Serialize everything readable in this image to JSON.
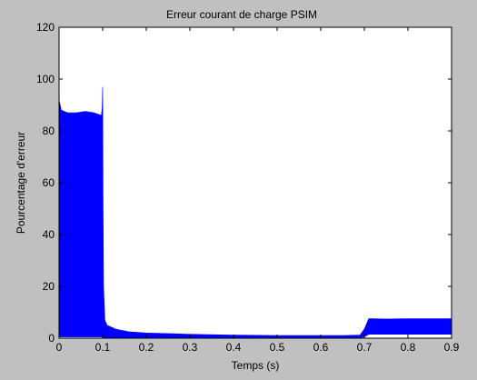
{
  "chart_data": {
    "type": "area",
    "title": "Erreur courant de charge PSIM",
    "xlabel": "Temps (s)",
    "ylabel": "Pourcentage d'erreur",
    "xlim": [
      0,
      0.9
    ],
    "ylim": [
      0,
      120
    ],
    "xticks": [
      "0",
      "0.1",
      "0.2",
      "0.3",
      "0.4",
      "0.5",
      "0.6",
      "0.7",
      "0.8",
      "0.9"
    ],
    "yticks": [
      "0",
      "20",
      "40",
      "60",
      "80",
      "100",
      "120"
    ],
    "grid": false,
    "legend": "none",
    "series_color": "#0000ff",
    "background": "#c0c0c0",
    "plot_background": "#ffffff",
    "envelope": {
      "x": [
        0.0,
        0.005,
        0.02,
        0.04,
        0.06,
        0.08,
        0.097,
        0.099,
        0.1,
        0.101,
        0.102,
        0.105,
        0.11,
        0.13,
        0.16,
        0.2,
        0.25,
        0.3,
        0.4,
        0.5,
        0.6,
        0.65,
        0.69,
        0.7,
        0.71,
        0.72,
        0.75,
        0.8,
        0.85,
        0.9
      ],
      "upper": [
        92.0,
        88.0,
        87.0,
        87.0,
        87.5,
        87.0,
        86.0,
        89.0,
        97.0,
        48.0,
        20.0,
        7.0,
        5.0,
        3.5,
        2.5,
        2.0,
        1.8,
        1.5,
        1.2,
        1.0,
        1.0,
        1.0,
        1.2,
        3.5,
        7.5,
        7.5,
        7.4,
        7.5,
        7.5,
        7.5
      ],
      "lower": [
        0.5,
        0.5,
        0.5,
        0.5,
        0.5,
        0.5,
        0.5,
        0.5,
        0.5,
        0.3,
        0.2,
        0.2,
        0.2,
        0.2,
        0.2,
        0.2,
        0.2,
        0.2,
        0.2,
        0.2,
        0.2,
        0.2,
        0.2,
        0.5,
        1.5,
        1.5,
        1.5,
        1.5,
        1.5,
        1.5
      ]
    }
  }
}
